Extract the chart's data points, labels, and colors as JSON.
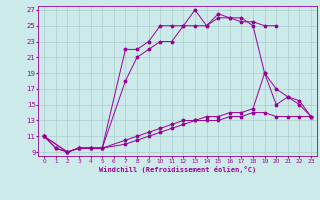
{
  "xlabel": "Windchill (Refroidissement éolien,°C)",
  "bg_color": "#cceaea",
  "line_color": "#990099",
  "grid_color": "#aacccc",
  "xlim": [
    -0.5,
    23.5
  ],
  "ylim": [
    8.5,
    27.5
  ],
  "xticks": [
    0,
    1,
    2,
    3,
    4,
    5,
    6,
    7,
    8,
    9,
    10,
    11,
    12,
    13,
    14,
    15,
    16,
    17,
    18,
    19,
    20,
    21,
    22,
    23
  ],
  "yticks": [
    9,
    11,
    13,
    15,
    17,
    19,
    21,
    23,
    25,
    27
  ],
  "c1x": [
    0,
    1,
    2,
    3,
    4,
    5,
    7,
    8,
    9,
    10,
    11,
    12,
    13,
    14,
    15,
    16,
    17,
    18,
    19,
    20
  ],
  "c1y": [
    11,
    9.5,
    9,
    9.5,
    9.5,
    9.5,
    22,
    22,
    23,
    25,
    25,
    25,
    27,
    25,
    26,
    26,
    25.5,
    25.5,
    25,
    25
  ],
  "c2x": [
    0,
    1,
    2,
    3,
    4,
    5,
    7,
    8,
    9,
    10,
    11,
    12,
    13,
    14,
    15,
    16,
    17,
    18,
    19,
    20,
    21,
    22,
    23
  ],
  "c2y": [
    11,
    9.5,
    9,
    9.5,
    9.5,
    9.5,
    18,
    21,
    22,
    23,
    23,
    25,
    25,
    25,
    26.5,
    26,
    26,
    25,
    19,
    15,
    16,
    15,
    13.5
  ],
  "c3x": [
    0,
    2,
    3,
    4,
    5,
    7,
    8,
    9,
    10,
    11,
    12,
    13,
    14,
    15,
    16,
    17,
    18,
    19,
    20,
    21,
    22,
    23
  ],
  "c3y": [
    11,
    9,
    9.5,
    9.5,
    9.5,
    10.5,
    11,
    11.5,
    12,
    12.5,
    13,
    13,
    13.5,
    13.5,
    14,
    14,
    14.5,
    19,
    17,
    16,
    15.5,
    13.5
  ],
  "c4x": [
    0,
    2,
    3,
    4,
    5,
    7,
    8,
    9,
    10,
    11,
    12,
    13,
    14,
    15,
    16,
    17,
    18,
    19,
    20,
    21,
    22,
    23
  ],
  "c4y": [
    11,
    9,
    9.5,
    9.5,
    9.5,
    10,
    10.5,
    11,
    11.5,
    12,
    12.5,
    13,
    13,
    13,
    13.5,
    13.5,
    14,
    14,
    13.5,
    13.5,
    13.5,
    13.5
  ]
}
